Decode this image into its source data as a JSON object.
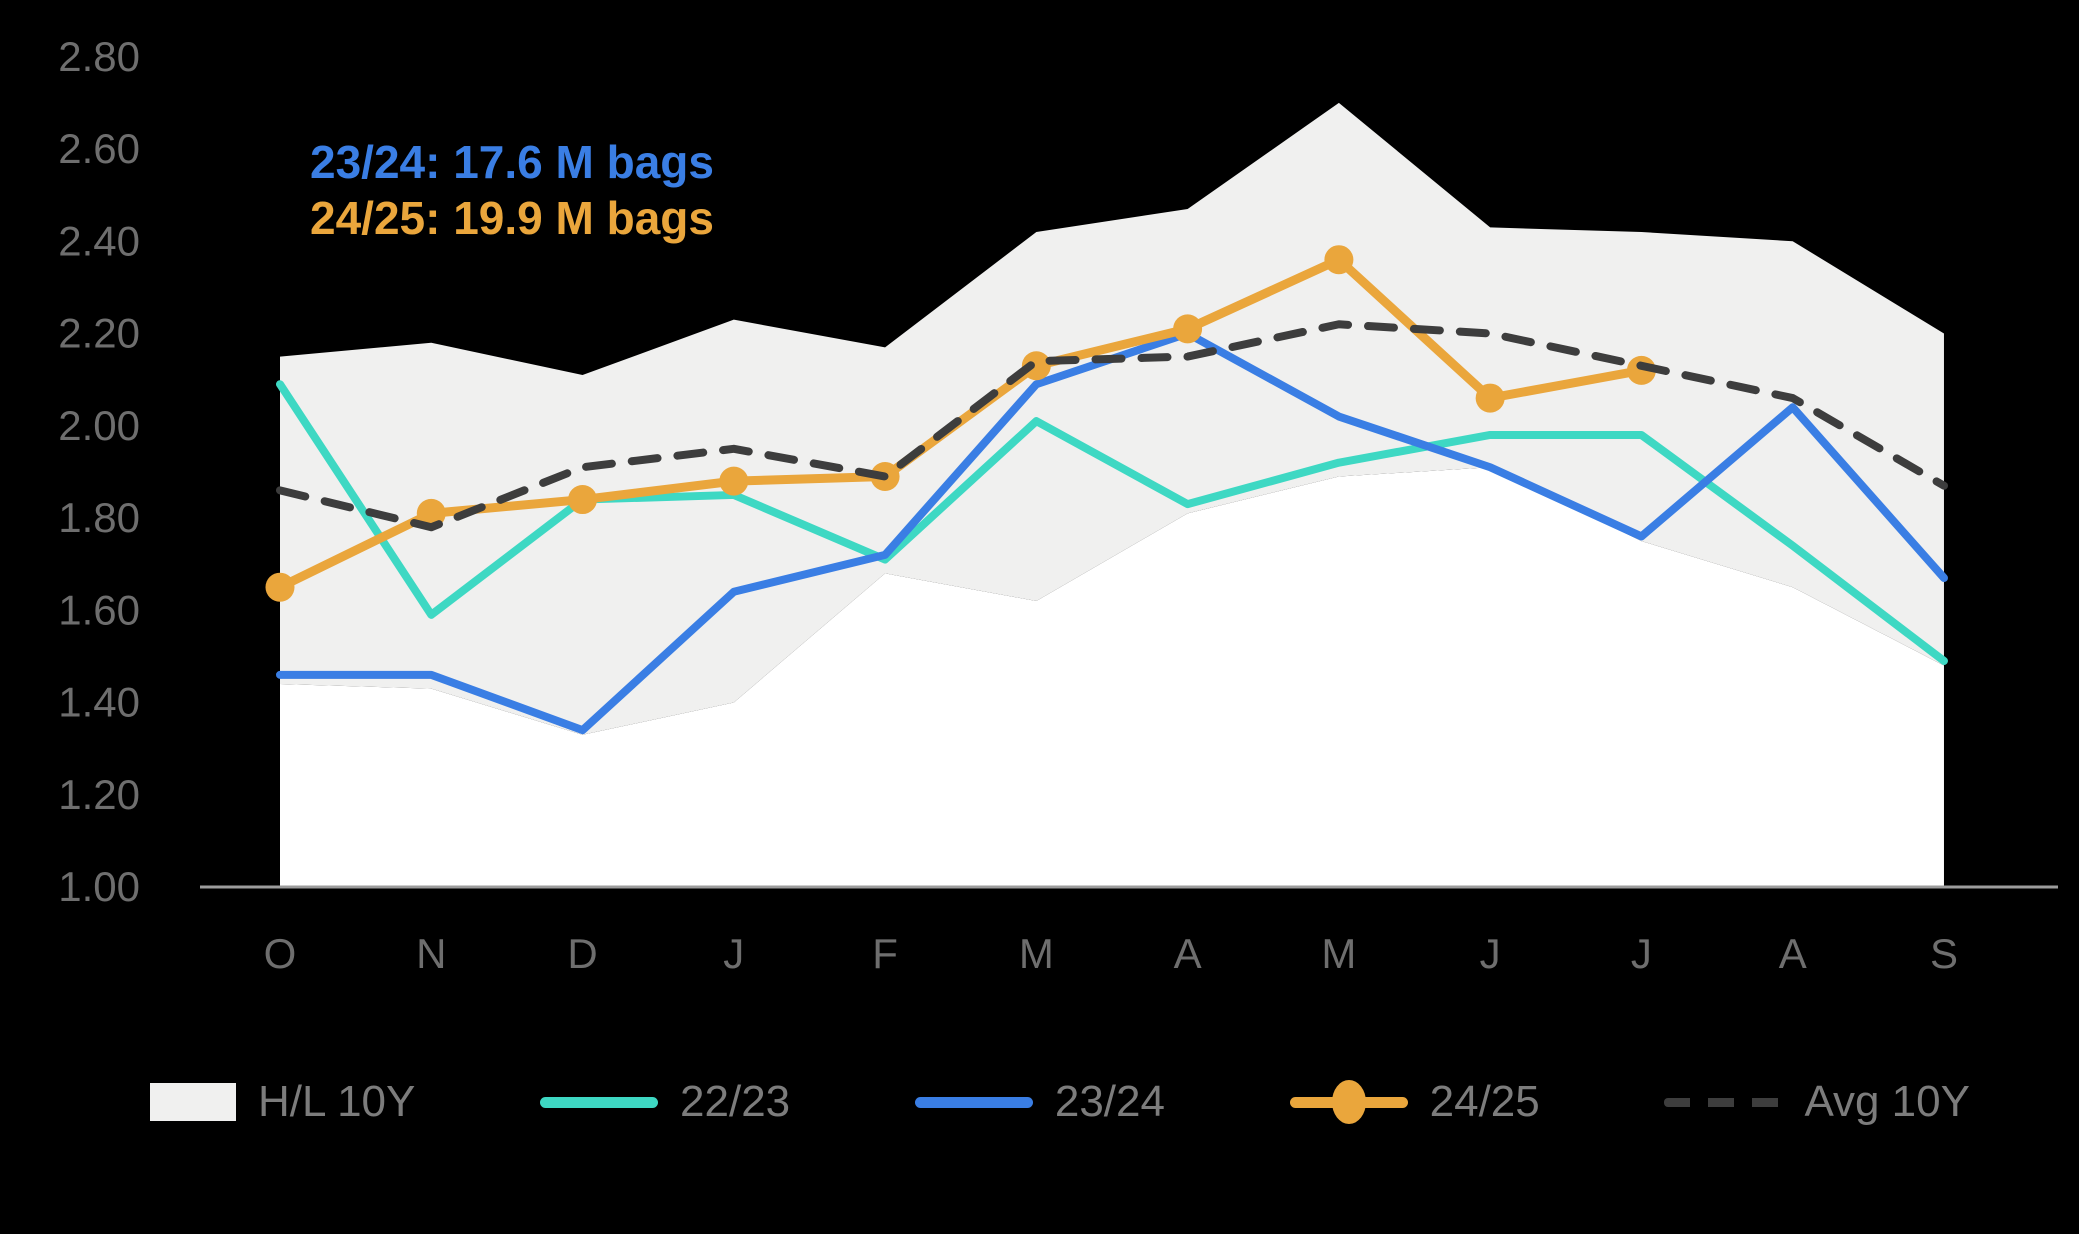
{
  "chart_data": {
    "type": "line",
    "title": "",
    "xlabel": "",
    "ylabel": "",
    "x_categories": [
      "O",
      "N",
      "D",
      "J",
      "F",
      "M",
      "A",
      "M",
      "J",
      "J",
      "A",
      "S"
    ],
    "ylim": [
      1.0,
      2.8
    ],
    "y_ticks": [
      "2.80",
      "2.60",
      "2.40",
      "2.20",
      "2.00",
      "1.80",
      "1.60",
      "1.40",
      "1.20",
      "1.00"
    ],
    "grid": "off",
    "legend_position": "bottom",
    "band": {
      "name": "H/L 10Y",
      "high": [
        2.15,
        2.18,
        2.11,
        2.23,
        2.17,
        2.42,
        2.47,
        2.7,
        2.43,
        2.42,
        2.4,
        2.2
      ],
      "low": [
        1.44,
        1.43,
        1.33,
        1.4,
        1.68,
        1.62,
        1.81,
        1.89,
        1.91,
        1.75,
        1.65,
        1.48
      ]
    },
    "series": [
      {
        "name": "22/23",
        "style": "solid",
        "marker": "none",
        "color": "#3ed8c3",
        "values": [
          2.09,
          1.59,
          1.84,
          1.85,
          1.71,
          2.01,
          1.83,
          1.92,
          1.98,
          1.98,
          1.74,
          1.49
        ]
      },
      {
        "name": "23/24",
        "style": "solid",
        "marker": "none",
        "color": "#3a7ee4",
        "values": [
          1.46,
          1.46,
          1.34,
          1.64,
          1.72,
          2.09,
          2.2,
          2.02,
          1.91,
          1.76,
          2.04,
          1.67
        ]
      },
      {
        "name": "24/25",
        "style": "solid",
        "marker": "circle",
        "color": "#eaa63c",
        "values": [
          1.65,
          1.81,
          1.84,
          1.88,
          1.89,
          2.13,
          2.21,
          2.36,
          2.06,
          2.12,
          null,
          null
        ]
      },
      {
        "name": "Avg 10Y",
        "style": "dashed",
        "marker": "none",
        "color": "#3d3d3d",
        "values": [
          1.86,
          1.78,
          1.91,
          1.95,
          1.89,
          2.14,
          2.15,
          2.22,
          2.2,
          2.13,
          2.06,
          1.87
        ]
      }
    ],
    "annotations": [
      {
        "text": "23/24: 17.6 M bags",
        "color": "#3a7ee4"
      },
      {
        "text": "24/25: 19.9 M bags",
        "color": "#eaa63c"
      }
    ]
  },
  "legend": {
    "items": [
      {
        "label": "H/L 10Y"
      },
      {
        "label": "22/23"
      },
      {
        "label": "23/24"
      },
      {
        "label": "24/25"
      },
      {
        "label": "Avg 10Y"
      }
    ]
  },
  "colors": {
    "background": "#000000",
    "band_fill": "#f0f0ef",
    "under_band_fill": "#ffffff",
    "axis_line": "#9c9c9c",
    "tick_label": "#6e6e6e",
    "legend_label": "#7c7c7c",
    "series_2223": "#3ed8c3",
    "series_2324": "#3a7ee4",
    "series_2425": "#eaa63c",
    "series_avg": "#3d3d3d"
  }
}
